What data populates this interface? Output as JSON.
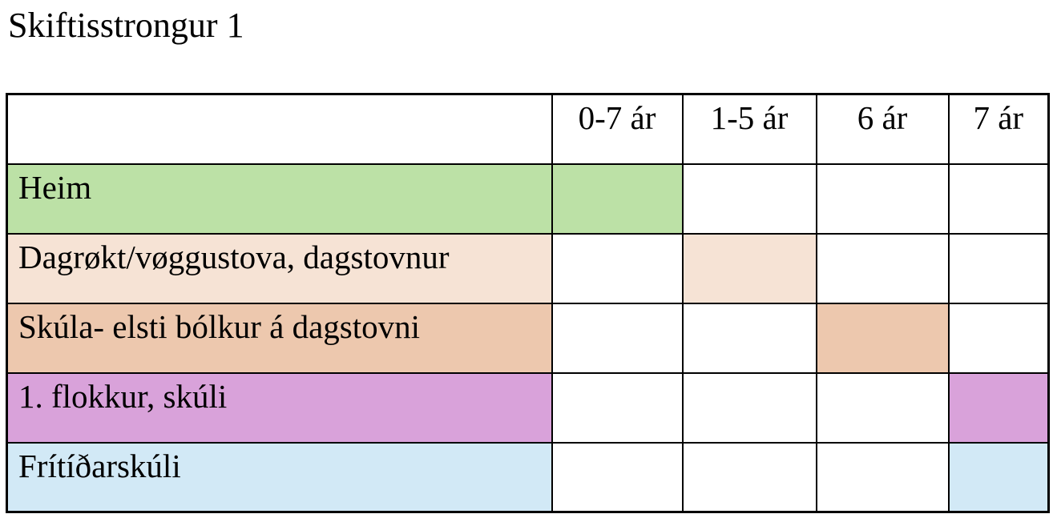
{
  "page": {
    "title": "Skiftisstrongur 1"
  },
  "table": {
    "column_headers": [
      "",
      "0-7 ár",
      "1-5 ár",
      "6 ár",
      "7 ár"
    ],
    "rows": [
      {
        "label": "Heim",
        "color": "#bce1a6",
        "highlight_column": "0-7 ár"
      },
      {
        "label": "Dagrøkt/vøggustova, dagstovnur",
        "color": "#f6e3d5",
        "highlight_column": "1-5 ár"
      },
      {
        "label": "Skúla- elsti bólkur á dagstovni",
        "color": "#edc8ae",
        "highlight_column": "6 ár"
      },
      {
        "label": "1. flokkur, skúli",
        "color": "#d9a2da",
        "highlight_column": "7 ár"
      },
      {
        "label": "Frítíðarskúli",
        "color": "#d2e9f6",
        "highlight_column": "7 ár"
      }
    ]
  }
}
